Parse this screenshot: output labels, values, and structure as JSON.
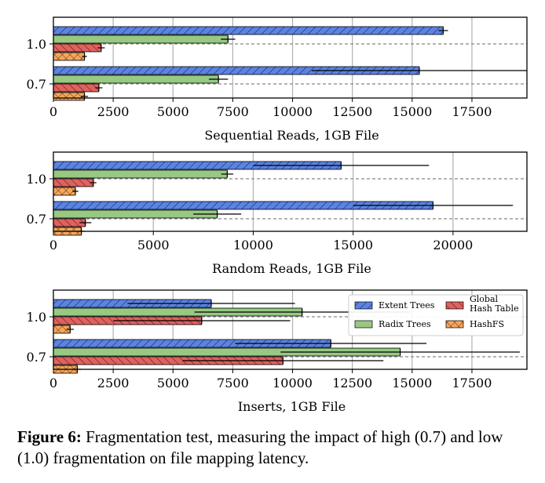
{
  "chart_data": [
    {
      "type": "bar",
      "orientation": "horizontal",
      "xlabel": "Sequential Reads, 1GB File",
      "categories": [
        "1.0",
        "0.7"
      ],
      "xlim": [
        0,
        19800
      ],
      "xticks": [
        0,
        2500,
        5000,
        7500,
        10000,
        12500,
        15000,
        17500
      ],
      "grid": "vertical",
      "series": [
        {
          "name": "Extent Trees",
          "values": [
            16300,
            15300
          ],
          "err": [
            200,
            4500
          ],
          "color": "#5b84e2",
          "hatch": "diagonal"
        },
        {
          "name": "Radix Trees",
          "values": [
            7300,
            6900
          ],
          "err": [
            300,
            400
          ],
          "color": "#97c983",
          "hatch": "none"
        },
        {
          "name": "Global Hash Table",
          "values": [
            2000,
            1900
          ],
          "err": [
            150,
            150
          ],
          "color": "#e0625e",
          "hatch": "backdiagonal"
        },
        {
          "name": "HashFS",
          "values": [
            1300,
            1300
          ],
          "err": [
            100,
            150
          ],
          "color": "#f5a65b",
          "hatch": "cross"
        }
      ]
    },
    {
      "type": "bar",
      "orientation": "horizontal",
      "xlabel": "Random Reads, 1GB File",
      "categories": [
        "1.0",
        "0.7"
      ],
      "xlim": [
        0,
        23700
      ],
      "xticks": [
        0,
        5000,
        10000,
        15000,
        20000
      ],
      "grid": "vertical",
      "series": [
        {
          "name": "Extent Trees",
          "values": [
            14400,
            19000
          ],
          "err": [
            4400,
            4000
          ],
          "color": "#5b84e2",
          "hatch": "diagonal"
        },
        {
          "name": "Radix Trees",
          "values": [
            8700,
            8200
          ],
          "err": [
            300,
            1200
          ],
          "color": "#97c983",
          "hatch": "none"
        },
        {
          "name": "Global Hash Table",
          "values": [
            2000,
            1600
          ],
          "err": [
            150,
            300
          ],
          "color": "#e0625e",
          "hatch": "backdiagonal"
        },
        {
          "name": "HashFS",
          "values": [
            1100,
            1400
          ],
          "err": [
            150,
            200
          ],
          "color": "#f5a65b",
          "hatch": "cross"
        }
      ]
    },
    {
      "type": "bar",
      "orientation": "horizontal",
      "xlabel": "Inserts, 1GB File",
      "categories": [
        "1.0",
        "0.7"
      ],
      "xlim": [
        0,
        19800
      ],
      "xticks": [
        0,
        2500,
        5000,
        7500,
        10000,
        12500,
        15000,
        17500
      ],
      "grid": "vertical",
      "legend": "top-right",
      "series": [
        {
          "name": "Extent Trees",
          "values": [
            6600,
            11600
          ],
          "err": [
            3500,
            4000
          ],
          "color": "#5b84e2",
          "hatch": "diagonal"
        },
        {
          "name": "Radix Trees",
          "values": [
            10400,
            14500
          ],
          "err": [
            4500,
            5000
          ],
          "color": "#97c983",
          "hatch": "none"
        },
        {
          "name": "Global Hash Table",
          "values": [
            6200,
            9600
          ],
          "err": [
            3700,
            4200
          ],
          "color": "#e0625e",
          "hatch": "backdiagonal"
        },
        {
          "name": "HashFS",
          "values": [
            700,
            1000
          ],
          "err": [
            150,
            150
          ],
          "color": "#f5a65b",
          "hatch": "cross"
        }
      ]
    }
  ],
  "legend": {
    "entries": [
      {
        "label": "Extent Trees",
        "series": 0
      },
      {
        "label": "Global\nHash Table",
        "series": 2
      },
      {
        "label": "Radix Trees",
        "series": 1
      },
      {
        "label": "HashFS",
        "series": 3
      }
    ]
  },
  "caption": {
    "label": "Figure 6:",
    "text": " Fragmentation test, measuring the impact of high (0.7) and low (1.0) fragmentation on file mapping latency."
  }
}
